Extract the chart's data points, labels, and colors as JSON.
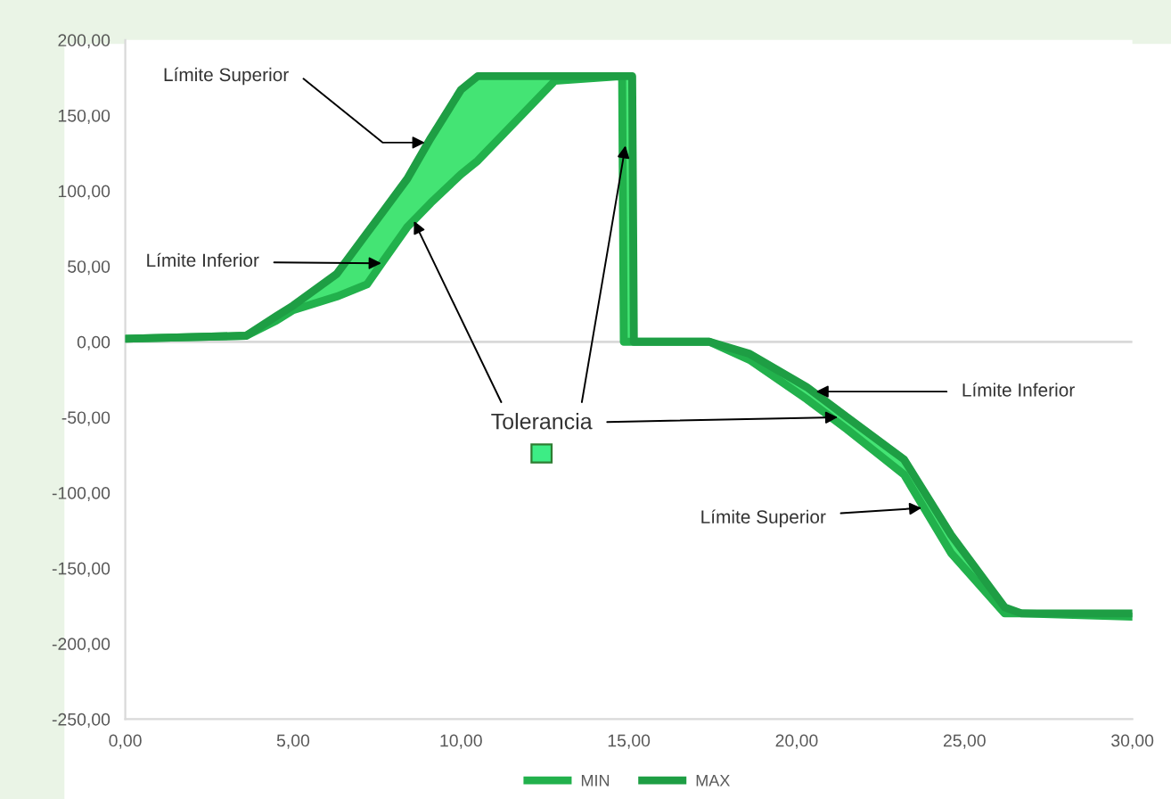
{
  "chart_data": {
    "type": "line",
    "x": [
      0,
      3.6,
      4.5,
      5.0,
      6.3,
      7.2,
      7.7,
      8.4,
      9.1,
      10.0,
      10.5,
      12.8,
      14.8,
      14.85,
      15.1,
      15.15,
      17.4,
      18.6,
      20.3,
      21.5,
      23.2,
      24.6,
      26.2,
      26.7,
      29.9
    ],
    "series": [
      {
        "name": "MIN",
        "color": "#22b14c",
        "values": [
          2,
          4,
          14,
          21,
          30,
          38,
          54,
          76,
          92,
          111,
          120,
          173,
          176,
          0,
          0,
          0,
          0,
          -12,
          -38,
          -58,
          -88,
          -140,
          -180,
          -180,
          -182
        ]
      },
      {
        "name": "MAX",
        "color": "#1e9e44",
        "values": [
          2,
          4,
          17,
          24,
          45,
          72,
          87,
          108,
          135,
          167,
          176,
          176,
          176,
          176,
          176,
          0,
          0,
          -8,
          -30,
          -50,
          -78,
          -128,
          -176,
          -180,
          -180
        ],
        "lower": [
          2,
          4,
          14,
          21,
          30,
          38,
          54,
          76,
          92,
          111,
          120,
          173,
          176,
          0,
          0,
          0,
          0,
          -12,
          -38,
          -58,
          -88,
          -140,
          -180,
          -180,
          -182
        ],
        "upper": [
          2,
          4,
          17,
          24,
          45,
          72,
          87,
          108,
          135,
          167,
          176,
          176,
          176,
          176,
          176,
          0,
          0,
          -8,
          -30,
          -50,
          -78,
          -128,
          -176,
          -180,
          -180
        ]
      }
    ],
    "xlim": [
      0,
      30
    ],
    "xticks": [
      {
        "value": 0,
        "label": "0,00"
      },
      {
        "value": 5,
        "label": "5,00"
      },
      {
        "value": 10,
        "label": "10,00"
      },
      {
        "value": 15,
        "label": "15,00"
      },
      {
        "value": 20,
        "label": "20,00"
      },
      {
        "value": 25,
        "label": "25,00"
      },
      {
        "value": 30,
        "label": "30,00"
      }
    ],
    "ylim": [
      -250,
      200
    ],
    "yticks": [
      {
        "value": -250,
        "label": "-250,00"
      },
      {
        "value": -200,
        "label": "-200,00"
      },
      {
        "value": -150,
        "label": "-150,00"
      },
      {
        "value": -100,
        "label": "-100,00"
      },
      {
        "value": -50,
        "label": "-50,00"
      },
      {
        "value": 0,
        "label": "0,00"
      },
      {
        "value": 50,
        "label": "50,00"
      },
      {
        "value": 100,
        "label": "100,00"
      },
      {
        "value": 150,
        "label": "150,00"
      },
      {
        "value": 200,
        "label": "200,00"
      }
    ],
    "ref_lines": [
      {
        "axis": "y",
        "value": 0,
        "color": "#d9d9d9"
      }
    ],
    "grid": false,
    "legend": "bottom",
    "marker": "none",
    "line_style": "solid",
    "annotations": [
      {
        "text": "Límite Superior",
        "x": 9.0,
        "y": 132
      },
      {
        "text": "Límite Inferior",
        "x": 7.7,
        "y": 52
      },
      {
        "text": "Tolerancia",
        "x": 21.3,
        "y": -50
      },
      {
        "text": "Límite Inferior",
        "x": 20.5,
        "y": -33
      },
      {
        "text": "Límite Superior",
        "x": 23.8,
        "y": -110
      }
    ]
  }
}
